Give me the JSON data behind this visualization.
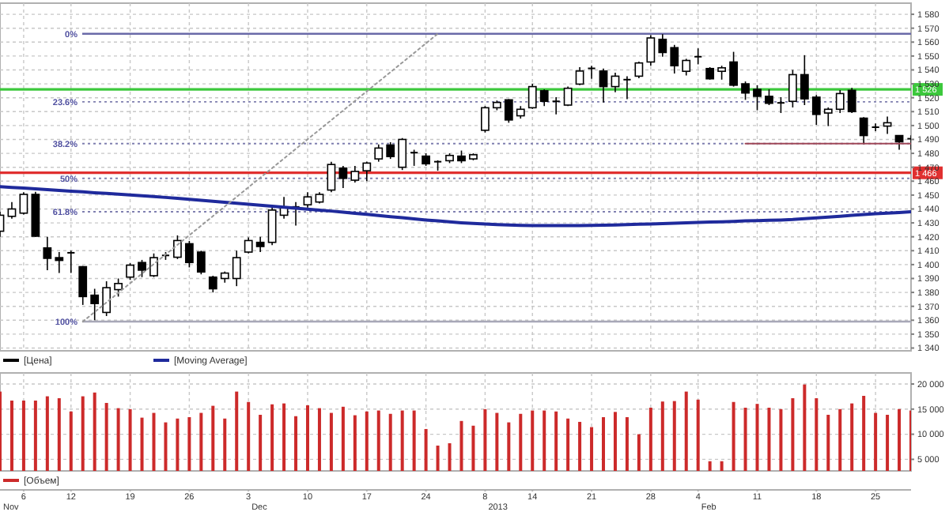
{
  "chart_data": [
    {
      "type": "candlestick",
      "categories": [
        null,
        null,
        "6",
        null,
        null,
        null,
        "12",
        null,
        null,
        null,
        null,
        "19",
        null,
        null,
        null,
        null,
        "26",
        null,
        null,
        null,
        null,
        "3",
        null,
        null,
        null,
        null,
        "10",
        null,
        null,
        null,
        null,
        "17",
        null,
        null,
        null,
        null,
        "24",
        null,
        null,
        null,
        null,
        "8",
        null,
        null,
        null,
        "14",
        null,
        null,
        null,
        null,
        "21",
        null,
        null,
        null,
        null,
        "28",
        null,
        null,
        null,
        "4",
        null,
        null,
        null,
        null,
        "11",
        null,
        null,
        null,
        null,
        "18",
        null,
        null,
        null,
        null,
        "25",
        null,
        null,
        null
      ],
      "series": [
        {
          "type": "candlestick",
          "name": "[Цена]",
          "color": "#000000",
          "ohlc": [
            [
              1424,
              1438,
              1420,
              1435.5
            ],
            [
              1434.7,
              1445,
              1433,
              1440
            ],
            [
              1437,
              1452,
              1436,
              1450.5
            ],
            [
              1450.5,
              1452.4,
              1420,
              1420.4
            ],
            [
              1412,
              1420,
              1396,
              1404.5
            ],
            [
              1405,
              1409,
              1394,
              1403
            ],
            [
              1408,
              1410,
              1394,
              1408.5
            ],
            [
              1398.5,
              1399,
              1371,
              1377
            ],
            [
              1378,
              1382.6,
              1360,
              1372
            ],
            [
              1365.6,
              1388,
              1363,
              1383.4
            ],
            [
              1382,
              1390,
              1377,
              1386.4
            ],
            [
              1391,
              1401,
              1389,
              1399.6
            ],
            [
              1401.5,
              1403.4,
              1391,
              1396
            ],
            [
              1392,
              1408,
              1391,
              1405
            ],
            [
              1406,
              1409,
              1403.4,
              1406.6
            ],
            [
              1405.3,
              1421,
              1404,
              1417.3
            ],
            [
              1415,
              1417,
              1398,
              1401.5
            ],
            [
              1409,
              1410,
              1393,
              1394.7
            ],
            [
              1391,
              1392,
              1380,
              1382.6
            ],
            [
              1390,
              1395,
              1387,
              1393.9
            ],
            [
              1390,
              1410,
              1384.5,
              1405
            ],
            [
              1409,
              1419.6,
              1408,
              1417.3
            ],
            [
              1416,
              1420,
              1409,
              1413
            ],
            [
              1416,
              1441,
              1414,
              1439.2
            ],
            [
              1435.5,
              1448.7,
              1433,
              1441
            ],
            [
              1441,
              1445,
              1428,
              1441.5
            ],
            [
              1443,
              1452,
              1441,
              1448.7
            ],
            [
              1445,
              1452,
              1444,
              1450.5
            ],
            [
              1453.6,
              1474,
              1452,
              1472
            ],
            [
              1469.4,
              1471,
              1455,
              1462
            ],
            [
              1460.7,
              1471,
              1459,
              1467
            ],
            [
              1467.5,
              1474,
              1460,
              1473
            ],
            [
              1476,
              1486.4,
              1474,
              1483.8
            ],
            [
              1486,
              1488,
              1476,
              1477.7
            ],
            [
              1470,
              1491,
              1468,
              1490
            ],
            [
              1480,
              1482.6,
              1471,
              1480.5
            ],
            [
              1478,
              1480,
              1471,
              1472.5
            ],
            [
              1474,
              1475,
              1467.5,
              1473.6
            ],
            [
              1474.7,
              1480,
              1473,
              1478.5
            ],
            [
              1478,
              1482,
              1473,
              1474.7
            ],
            [
              1476,
              1480,
              1475,
              1479
            ],
            [
              1496.6,
              1514,
              1495,
              1512.8
            ],
            [
              1512.8,
              1518,
              1511,
              1516.6
            ],
            [
              1518.5,
              1519,
              1502,
              1504
            ],
            [
              1507,
              1514,
              1505,
              1511.7
            ],
            [
              1512.8,
              1530,
              1512,
              1528
            ],
            [
              1525,
              1526,
              1514,
              1517.4
            ],
            [
              1517,
              1520.4,
              1508,
              1517.4
            ],
            [
              1514.7,
              1528,
              1514,
              1526.8
            ],
            [
              1529.8,
              1542,
              1529,
              1539.2
            ],
            [
              1541,
              1543,
              1533.6,
              1541.1
            ],
            [
              1539.2,
              1541,
              1516.6,
              1528
            ],
            [
              1528,
              1538,
              1524,
              1535.5
            ],
            [
              1532.8,
              1535.5,
              1519,
              1533
            ],
            [
              1535.5,
              1546,
              1534,
              1545
            ],
            [
              1545.7,
              1565,
              1543,
              1563
            ],
            [
              1562,
              1565.7,
              1549.5,
              1552.5
            ],
            [
              1556,
              1558,
              1537.4,
              1543
            ],
            [
              1539,
              1548,
              1536,
              1546.8
            ],
            [
              1549.4,
              1555.5,
              1544,
              1549.5
            ],
            [
              1541,
              1542,
              1533,
              1533.6
            ],
            [
              1539,
              1543,
              1533,
              1541.5
            ],
            [
              1545.7,
              1553,
              1528,
              1529
            ],
            [
              1530,
              1531.7,
              1518.5,
              1523.4
            ],
            [
              1526,
              1529,
              1511,
              1521
            ],
            [
              1521,
              1526,
              1514.7,
              1516
            ],
            [
              1516,
              1520.4,
              1509,
              1516.3
            ],
            [
              1517.4,
              1540,
              1513,
              1536.6
            ],
            [
              1536.6,
              1550.6,
              1514.7,
              1519.2
            ],
            [
              1520.4,
              1522,
              1500.5,
              1508
            ],
            [
              1509,
              1513,
              1499.6,
              1511.7
            ],
            [
              1511.7,
              1525.5,
              1509,
              1523
            ],
            [
              1525.3,
              1527,
              1509,
              1510
            ],
            [
              1505.3,
              1506,
              1486.4,
              1492.8
            ],
            [
              1498.4,
              1501.5,
              1496,
              1498.8
            ],
            [
              1499.6,
              1506.4,
              1494,
              1502
            ],
            [
              1492.8,
              1493,
              1482.6,
              1488.3
            ],
            [
              1490,
              1493,
              1482.6,
              1490.5
            ]
          ]
        },
        {
          "type": "line",
          "name": "[Moving Average]",
          "color": "#1f2a9c",
          "values": [
            1456,
            1455.5,
            1455,
            1454.5,
            1453.9,
            1453.4,
            1452.8,
            1452.3,
            1451.7,
            1451.2,
            1450.6,
            1450.1,
            1449.5,
            1449,
            1448.3,
            1447.6,
            1446.9,
            1446.2,
            1445.5,
            1444.8,
            1444.1,
            1443.4,
            1442.7,
            1442,
            1441.3,
            1440.6,
            1439.9,
            1439.2,
            1438.5,
            1437.7,
            1436.9,
            1436.1,
            1435.3,
            1434.5,
            1433.7,
            1432.9,
            1432.1,
            1431.4,
            1430.7,
            1430.1,
            1429.6,
            1429.2,
            1428.8,
            1428.5,
            1428.2,
            1428,
            1428,
            1428,
            1428,
            1428.1,
            1428.2,
            1428.3,
            1428.5,
            1428.7,
            1429,
            1429.2,
            1429.5,
            1429.8,
            1430,
            1430.3,
            1430.6,
            1430.8,
            1431.1,
            1431.4,
            1431.6,
            1431.9,
            1432.1,
            1432.4,
            1433,
            1433.6,
            1434.2,
            1434.8,
            1435.4,
            1436,
            1436.6,
            1437,
            1437.5,
            1438
          ]
        },
        {
          "type": "line",
          "color": "#999999",
          "line_style": "dotted",
          "values": [
            null,
            null,
            null,
            null,
            null,
            null,
            null,
            1359,
            null,
            null,
            null,
            null,
            null,
            null,
            null,
            null,
            null,
            null,
            null,
            null,
            null,
            null,
            null,
            null,
            null,
            null,
            null,
            null,
            null,
            null,
            null,
            null,
            null,
            null,
            null,
            null,
            null,
            1566,
            null,
            null,
            null,
            null,
            null,
            null,
            null,
            null,
            null,
            null,
            null,
            null,
            null,
            null,
            null,
            null,
            null,
            null,
            null,
            null,
            null,
            null,
            null,
            null,
            null,
            null,
            null,
            null,
            null,
            null,
            null,
            null,
            null,
            null,
            null,
            null,
            null,
            null,
            null,
            null
          ]
        },
        {
          "type": "line",
          "color": "#a04858",
          "values": [
            null,
            null,
            null,
            null,
            null,
            null,
            null,
            null,
            null,
            null,
            null,
            null,
            null,
            null,
            null,
            null,
            null,
            null,
            null,
            null,
            null,
            null,
            null,
            null,
            null,
            null,
            null,
            null,
            null,
            null,
            null,
            null,
            null,
            null,
            null,
            null,
            null,
            null,
            null,
            null,
            null,
            null,
            null,
            null,
            null,
            null,
            null,
            null,
            null,
            null,
            null,
            null,
            null,
            null,
            null,
            null,
            null,
            null,
            null,
            null,
            null,
            null,
            null,
            1487,
            1487,
            1487,
            1487,
            1487,
            1487,
            1487,
            1487,
            1487,
            1487,
            1487,
            1487,
            1487,
            1487,
            1487
          ]
        }
      ],
      "ylim": [
        1338,
        1588
      ],
      "yticks": [
        {
          "value": 1340,
          "label": "1 340"
        },
        {
          "value": 1350,
          "label": "1 350"
        },
        {
          "value": 1360,
          "label": "1 360"
        },
        {
          "value": 1370,
          "label": "1 370"
        },
        {
          "value": 1380,
          "label": "1 380"
        },
        {
          "value": 1390,
          "label": "1 390"
        },
        {
          "value": 1400,
          "label": "1 400"
        },
        {
          "value": 1410,
          "label": "1 410"
        },
        {
          "value": 1420,
          "label": "1 420"
        },
        {
          "value": 1430,
          "label": "1 430"
        },
        {
          "value": 1440,
          "label": "1 440"
        },
        {
          "value": 1450,
          "label": "1 450"
        },
        {
          "value": 1460,
          "label": "1 460"
        },
        {
          "value": 1470,
          "label": "1 470"
        },
        {
          "value": 1480,
          "label": "1 480"
        },
        {
          "value": 1490,
          "label": "1 490"
        },
        {
          "value": 1500,
          "label": "1 500"
        },
        {
          "value": 1510,
          "label": "1 510"
        },
        {
          "value": 1520,
          "label": "1 520"
        },
        {
          "value": 1530,
          "label": "1 530"
        },
        {
          "value": 1540,
          "label": "1 540"
        },
        {
          "value": 1550,
          "label": "1 550"
        },
        {
          "value": 1560,
          "label": "1 560"
        },
        {
          "value": 1570,
          "label": "1 570"
        },
        {
          "value": 1580,
          "label": "1 580"
        }
      ],
      "ref_lines": [
        {
          "axis": "y",
          "value": 1566,
          "color": "#6a6aa8",
          "line_style": "solid"
        },
        {
          "axis": "y",
          "value": 1517,
          "color": "#8080b0",
          "line_style": "dotted"
        },
        {
          "axis": "y",
          "value": 1487,
          "color": "#8080b0",
          "line_style": "dotted"
        },
        {
          "axis": "y",
          "value": 1462,
          "color": "#8080b0",
          "line_style": "dotted"
        },
        {
          "axis": "y",
          "value": 1438,
          "color": "#8080b0",
          "line_style": "dotted"
        },
        {
          "axis": "y",
          "value": 1359,
          "color": "#a8a8b8",
          "line_style": "solid"
        },
        {
          "axis": "y",
          "value": 1526,
          "label": "1 526",
          "color": "#3cc83c"
        },
        {
          "axis": "y",
          "value": 1466,
          "label": "1 466",
          "color": "#e03030"
        }
      ],
      "annotations": [
        "0%",
        "23.6%",
        "38.2%",
        "50%",
        "61.8%",
        "100%"
      ],
      "grid": true,
      "legend": "bottom left",
      "tick_labels": "y"
    },
    {
      "type": "bar",
      "categories": [
        null,
        null,
        "6",
        null,
        null,
        null,
        "12",
        null,
        null,
        null,
        null,
        "19",
        null,
        null,
        null,
        null,
        "26",
        null,
        null,
        null,
        null,
        "3",
        null,
        null,
        null,
        null,
        "10",
        null,
        null,
        null,
        null,
        "17",
        null,
        null,
        null,
        null,
        "24",
        null,
        null,
        null,
        null,
        "8",
        null,
        null,
        null,
        "14",
        null,
        null,
        null,
        null,
        "21",
        null,
        null,
        null,
        null,
        "28",
        null,
        null,
        null,
        "4",
        null,
        null,
        null,
        null,
        "11",
        null,
        null,
        null,
        null,
        "18",
        null,
        null,
        null,
        null,
        "25",
        null,
        null,
        null
      ],
      "series": [
        {
          "name": "[Объем]",
          "color": "#cc2a2a",
          "values": [
            18490,
            16700,
            16700,
            16700,
            17550,
            17170,
            14530,
            17550,
            18300,
            16230,
            15190,
            15000,
            13300,
            14250,
            12360,
            13120,
            13400,
            14250,
            15660,
            13120,
            18490,
            16420,
            13870,
            15950,
            16130,
            13590,
            15760,
            15190,
            14250,
            15470,
            13780,
            14530,
            14720,
            14060,
            14720,
            14720,
            11040,
            7740,
            8210,
            12640,
            11700,
            15000,
            14250,
            12360,
            14060,
            14720,
            14720,
            14530,
            13120,
            12460,
            11420,
            13400,
            14440,
            13400,
            10000,
            15280,
            16510,
            16600,
            18490,
            16890,
            4630,
            4630,
            16420,
            15280,
            16040,
            15280,
            15000,
            17170,
            19900,
            17170,
            13870,
            15000,
            16130,
            17640,
            14250,
            13870,
            15000,
            14720
          ]
        }
      ],
      "ylim": [
        2700,
        22200
      ],
      "yticks": [
        {
          "value": 5000,
          "label": "5 000"
        },
        {
          "value": 10000,
          "label": "10 000"
        },
        {
          "value": 15000,
          "label": "15 000"
        },
        {
          "value": 20000,
          "label": "20 000"
        }
      ],
      "annotations": [
        "Nov",
        "Dec",
        "2013",
        "Feb"
      ],
      "grid": true,
      "legend": "bottom left"
    }
  ]
}
